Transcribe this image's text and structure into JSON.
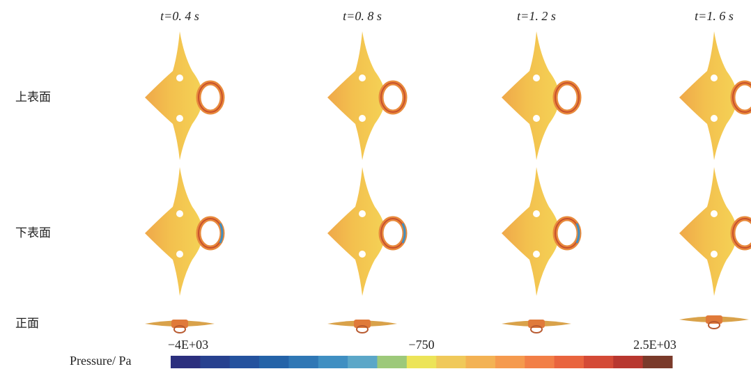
{
  "columns": [
    "t=0. 4 s",
    "t=0. 8 s",
    "t=1. 2 s",
    "t=1. 6 s"
  ],
  "rows": [
    "上表面",
    "下表面",
    "正面"
  ],
  "colorbar": {
    "label": "Pressure/ Pa",
    "range": [
      -4000,
      2500
    ],
    "ticks": [
      {
        "value": -4000,
        "label": "−4E+03"
      },
      {
        "value": -750,
        "label": "−750"
      },
      {
        "value": 2500,
        "label": "2.5E+03"
      }
    ],
    "colors": [
      "#2b2f7e",
      "#27418f",
      "#24529e",
      "#2463a8",
      "#2f77b5",
      "#3f8fc2",
      "#5ba7c8",
      "#9dc97a",
      "#ece458",
      "#f0c95a",
      "#f3b254",
      "#f59a4e",
      "#f27f47",
      "#e9643e",
      "#d44a36",
      "#b8372f",
      "#7a3a2a"
    ]
  }
}
